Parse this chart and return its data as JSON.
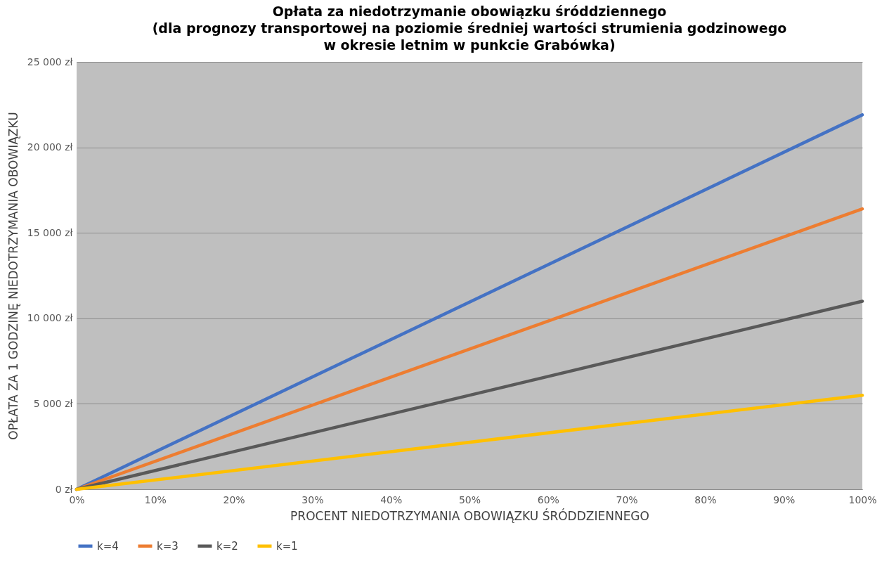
{
  "chart_data": {
    "type": "line",
    "title": [
      "Opłata za niedotrzymanie obowiązku śróddziennego",
      "(dla prognozy transportowej na poziomie średniej wartości strumienia godzinowego",
      "w okresie letnim w punkcie Grabówka)"
    ],
    "xlabel": "PROCENT NIEDOTRZYMANIA OBOWIĄZKU ŚRÓDDZIENNEGO",
    "ylabel": "OPŁATA ZA 1 GODZINĘ NIEDOTRZYMANIA OBOWIĄZKU",
    "x": [
      0,
      100
    ],
    "series": [
      {
        "name": "k=4",
        "color": "#4472c4",
        "values": [
          0,
          21900
        ]
      },
      {
        "name": "k=3",
        "color": "#ed7d31",
        "values": [
          0,
          16400
        ]
      },
      {
        "name": "k=2",
        "color": "#595959",
        "values": [
          0,
          11000
        ]
      },
      {
        "name": "k=1",
        "color": "#ffc000",
        "values": [
          0,
          5500
        ]
      }
    ],
    "xlim": [
      0,
      100
    ],
    "xticks": [
      {
        "value": 0,
        "label": "0%"
      },
      {
        "value": 10,
        "label": "10%"
      },
      {
        "value": 20,
        "label": "20%"
      },
      {
        "value": 30,
        "label": "30%"
      },
      {
        "value": 40,
        "label": "40%"
      },
      {
        "value": 50,
        "label": "50%"
      },
      {
        "value": 60,
        "label": "60%"
      },
      {
        "value": 70,
        "label": "70%"
      },
      {
        "value": 80,
        "label": "80%"
      },
      {
        "value": 90,
        "label": "90%"
      },
      {
        "value": 100,
        "label": "100%"
      }
    ],
    "ylim": [
      0,
      25000
    ],
    "yticks": [
      {
        "value": 0,
        "label": "0 zł"
      },
      {
        "value": 5000,
        "label": "5 000 zł"
      },
      {
        "value": 10000,
        "label": "10 000 zł"
      },
      {
        "value": 15000,
        "label": "15 000 zł"
      },
      {
        "value": 20000,
        "label": "20 000 zł"
      },
      {
        "value": 25000,
        "label": "25 000 zł"
      }
    ],
    "grid": "y",
    "legend": "bottom"
  }
}
